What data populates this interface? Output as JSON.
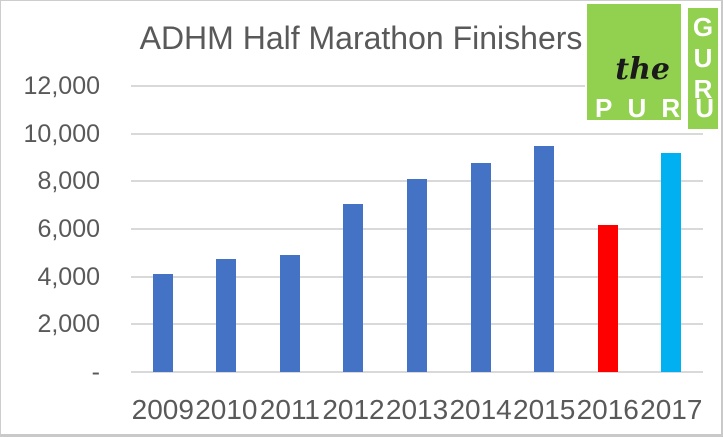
{
  "title": "ADHM Half Marathon Finishers",
  "logo": {
    "script_text": "the",
    "word_bottom": "PURU",
    "word_side": "GURU",
    "bg_color": "#92D050",
    "letter_color": "#FFFFFF",
    "script_color": "#1A1A1A"
  },
  "chart_data": {
    "type": "bar",
    "title": "ADHM Half Marathon Finishers",
    "categories": [
      "2009",
      "2010",
      "2011",
      "2012",
      "2013",
      "2014",
      "2015",
      "2016",
      "2017"
    ],
    "values": [
      4100,
      4750,
      4900,
      7050,
      8100,
      8750,
      9500,
      6150,
      9200
    ],
    "bar_colors": [
      "#4472C4",
      "#4472C4",
      "#4472C4",
      "#4472C4",
      "#4472C4",
      "#4472C4",
      "#4472C4",
      "#FF0000",
      "#00B0F0"
    ],
    "xlabel": "",
    "ylabel": "",
    "ylim": [
      0,
      12000
    ],
    "ytick_interval": 2000,
    "ytick_labels_bottom_to_top": [
      "-",
      "2,000",
      "4,000",
      "6,000",
      "8,000",
      "10,000",
      "12,000"
    ],
    "grid": true,
    "legend": "none",
    "gridline_color": "#D9D9D9",
    "axis_text_color": "#595959"
  }
}
